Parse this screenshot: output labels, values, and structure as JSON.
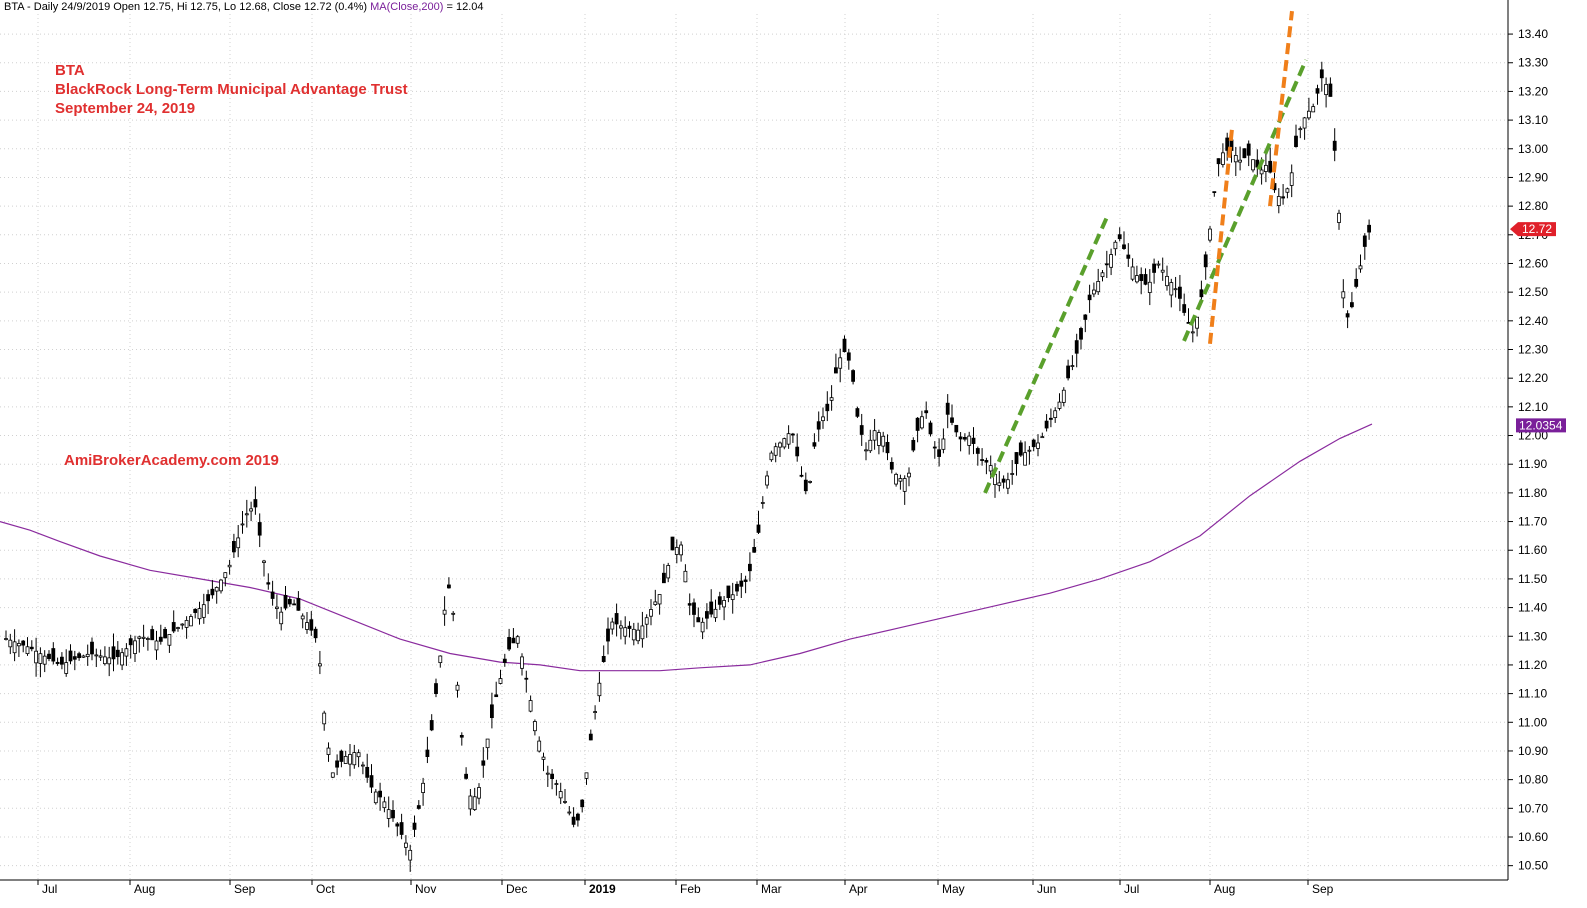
{
  "header": {
    "main": "BTA - Daily 24/9/2019 Open 12.75, Hi 12.75, Lo 12.68, Close 12.72 (0.4%)",
    "ma_label": "MA(Close,200)",
    "ma_value": " = 12.04"
  },
  "annotation": {
    "ticker": "BTA",
    "name": "BlackRock Long-Term Municipal Advantage Trust",
    "date": "September 24, 2019",
    "watermark": "AmiBrokerAcademy.com   2019"
  },
  "colors": {
    "price": "#000000",
    "ma": "#8a2b9e",
    "green_trend": "#5aa02c",
    "orange_trend": "#f07f1a",
    "grid": "#d0d0d0",
    "last_price_tag": "#e0202a",
    "ma_tag": "#7a1f9a"
  },
  "chart_data": {
    "type": "candlestick",
    "ylim": [
      10.45,
      13.47
    ],
    "y_ticks": [
      "10.50",
      "10.60",
      "10.70",
      "10.80",
      "10.90",
      "11.00",
      "11.10",
      "11.20",
      "11.30",
      "11.40",
      "11.50",
      "11.60",
      "11.70",
      "11.80",
      "11.90",
      "12.00",
      "12.10",
      "12.20",
      "12.30",
      "12.40",
      "12.50",
      "12.60",
      "12.70",
      "12.80",
      "12.90",
      "13.00",
      "13.10",
      "13.20",
      "13.30",
      "13.40"
    ],
    "x_labels": [
      "Jul",
      "Aug",
      "Sep",
      "Oct",
      "Nov",
      "Dec",
      "2019",
      "Feb",
      "Mar",
      "Apr",
      "May",
      "Jun",
      "Jul",
      "Aug",
      "Sep"
    ],
    "last_price": "12.72",
    "ma_last": "12.0354",
    "price_path": [
      [
        0,
        11.3
      ],
      [
        30,
        11.26
      ],
      [
        60,
        11.2
      ],
      [
        90,
        11.24
      ],
      [
        115,
        11.22
      ],
      [
        140,
        11.3
      ],
      [
        160,
        11.28
      ],
      [
        185,
        11.35
      ],
      [
        210,
        11.43
      ],
      [
        230,
        11.55
      ],
      [
        245,
        11.72
      ],
      [
        255,
        11.76
      ],
      [
        262,
        11.6
      ],
      [
        270,
        11.45
      ],
      [
        280,
        11.38
      ],
      [
        292,
        11.42
      ],
      [
        305,
        11.36
      ],
      [
        318,
        11.28
      ],
      [
        325,
        11.0
      ],
      [
        332,
        10.82
      ],
      [
        345,
        10.88
      ],
      [
        358,
        10.9
      ],
      [
        370,
        10.78
      ],
      [
        385,
        10.72
      ],
      [
        400,
        10.62
      ],
      [
        410,
        10.55
      ],
      [
        420,
        10.72
      ],
      [
        432,
        10.98
      ],
      [
        440,
        11.22
      ],
      [
        447,
        11.48
      ],
      [
        452,
        11.45
      ],
      [
        458,
        11.1
      ],
      [
        465,
        10.82
      ],
      [
        472,
        10.72
      ],
      [
        480,
        10.78
      ],
      [
        488,
        10.95
      ],
      [
        498,
        11.12
      ],
      [
        508,
        11.25
      ],
      [
        518,
        11.3
      ],
      [
        528,
        11.12
      ],
      [
        538,
        10.95
      ],
      [
        548,
        10.82
      ],
      [
        558,
        10.78
      ],
      [
        568,
        10.7
      ],
      [
        575,
        10.63
      ],
      [
        582,
        10.7
      ],
      [
        590,
        10.92
      ],
      [
        600,
        11.15
      ],
      [
        612,
        11.35
      ],
      [
        625,
        11.33
      ],
      [
        640,
        11.32
      ],
      [
        652,
        11.4
      ],
      [
        662,
        11.46
      ],
      [
        672,
        11.6
      ],
      [
        682,
        11.62
      ],
      [
        690,
        11.4
      ],
      [
        700,
        11.34
      ],
      [
        712,
        11.38
      ],
      [
        722,
        11.42
      ],
      [
        735,
        11.45
      ],
      [
        748,
        11.5
      ],
      [
        758,
        11.65
      ],
      [
        765,
        11.82
      ],
      [
        772,
        11.95
      ],
      [
        782,
        11.98
      ],
      [
        792,
        12.02
      ],
      [
        800,
        11.88
      ],
      [
        808,
        11.78
      ],
      [
        815,
        11.98
      ],
      [
        822,
        12.06
      ],
      [
        830,
        12.1
      ],
      [
        838,
        12.26
      ],
      [
        846,
        12.3
      ],
      [
        852,
        12.22
      ],
      [
        858,
        12.05
      ],
      [
        866,
        11.95
      ],
      [
        875,
        12.02
      ],
      [
        883,
        12.0
      ],
      [
        892,
        11.88
      ],
      [
        900,
        11.85
      ],
      [
        908,
        11.85
      ],
      [
        916,
        12.0
      ],
      [
        925,
        12.1
      ],
      [
        932,
        11.98
      ],
      [
        940,
        11.92
      ],
      [
        948,
        12.08
      ],
      [
        955,
        12.02
      ],
      [
        962,
        11.98
      ],
      [
        970,
        12.0
      ],
      [
        980,
        11.92
      ],
      [
        990,
        11.9
      ],
      [
        1000,
        11.83
      ],
      [
        1010,
        11.85
      ],
      [
        1020,
        11.93
      ],
      [
        1030,
        11.95
      ],
      [
        1040,
        11.98
      ],
      [
        1050,
        12.05
      ],
      [
        1060,
        12.12
      ],
      [
        1070,
        12.22
      ],
      [
        1080,
        12.32
      ],
      [
        1090,
        12.48
      ],
      [
        1100,
        12.55
      ],
      [
        1110,
        12.62
      ],
      [
        1118,
        12.7
      ],
      [
        1128,
        12.62
      ],
      [
        1138,
        12.55
      ],
      [
        1148,
        12.52
      ],
      [
        1158,
        12.6
      ],
      [
        1168,
        12.55
      ],
      [
        1178,
        12.5
      ],
      [
        1185,
        12.42
      ],
      [
        1193,
        12.36
      ],
      [
        1200,
        12.45
      ],
      [
        1207,
        12.62
      ],
      [
        1213,
        12.82
      ],
      [
        1220,
        12.98
      ],
      [
        1230,
        13.0
      ],
      [
        1240,
        12.96
      ],
      [
        1250,
        12.98
      ],
      [
        1260,
        12.92
      ],
      [
        1268,
        12.95
      ],
      [
        1275,
        12.85
      ],
      [
        1282,
        12.82
      ],
      [
        1290,
        12.88
      ],
      [
        1298,
        13.05
      ],
      [
        1306,
        13.12
      ],
      [
        1314,
        13.15
      ],
      [
        1322,
        13.25
      ],
      [
        1330,
        13.2
      ],
      [
        1338,
        12.85
      ],
      [
        1342,
        12.55
      ],
      [
        1346,
        12.4
      ],
      [
        1352,
        12.45
      ],
      [
        1358,
        12.55
      ],
      [
        1364,
        12.65
      ],
      [
        1370,
        12.72
      ]
    ],
    "ma_path": [
      [
        0,
        11.7
      ],
      [
        30,
        11.67
      ],
      [
        60,
        11.63
      ],
      [
        100,
        11.58
      ],
      [
        150,
        11.53
      ],
      [
        200,
        11.5
      ],
      [
        250,
        11.47
      ],
      [
        300,
        11.43
      ],
      [
        350,
        11.36
      ],
      [
        400,
        11.29
      ],
      [
        450,
        11.24
      ],
      [
        500,
        11.21
      ],
      [
        540,
        11.2
      ],
      [
        580,
        11.18
      ],
      [
        620,
        11.18
      ],
      [
        660,
        11.18
      ],
      [
        700,
        11.19
      ],
      [
        750,
        11.2
      ],
      [
        800,
        11.24
      ],
      [
        850,
        11.29
      ],
      [
        900,
        11.33
      ],
      [
        950,
        11.37
      ],
      [
        1000,
        11.41
      ],
      [
        1050,
        11.45
      ],
      [
        1100,
        11.5
      ],
      [
        1150,
        11.56
      ],
      [
        1200,
        11.65
      ],
      [
        1250,
        11.79
      ],
      [
        1300,
        11.91
      ],
      [
        1340,
        11.99
      ],
      [
        1372,
        12.04
      ]
    ],
    "trend_lines": [
      {
        "color": "green",
        "from": [
          985,
          11.8
        ],
        "to": [
          1108,
          12.77
        ]
      },
      {
        "color": "green",
        "from": [
          1184,
          12.33
        ],
        "to": [
          1306,
          13.31
        ]
      },
      {
        "color": "orange",
        "from": [
          1210,
          12.32
        ],
        "to": [
          1232,
          13.07
        ]
      },
      {
        "color": "orange",
        "from": [
          1270,
          12.8
        ],
        "to": [
          1292,
          13.48
        ]
      }
    ]
  }
}
